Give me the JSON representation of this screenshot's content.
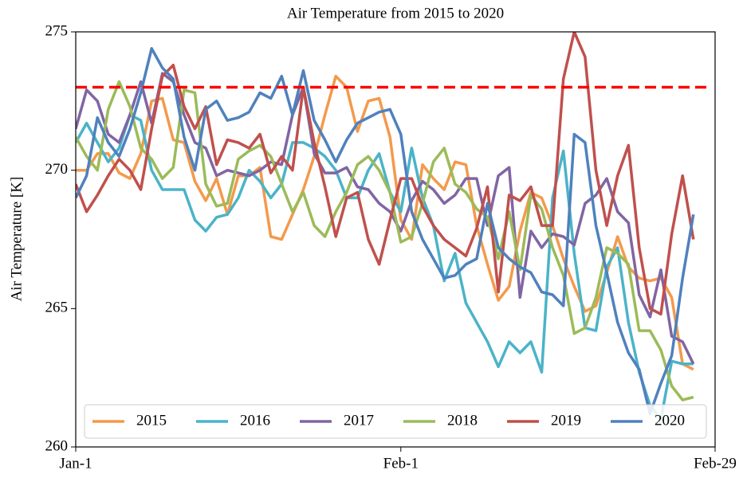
{
  "chart_data": {
    "type": "line",
    "title": "Air Temperature from 2015 to 2020",
    "ylabel": "Air Temperature [K]",
    "x": [
      0,
      1,
      2,
      3,
      4,
      5,
      6,
      7,
      8,
      9,
      10,
      11,
      12,
      13,
      14,
      15,
      16,
      17,
      18,
      19,
      20,
      21,
      22,
      23,
      24,
      25,
      26,
      27,
      28,
      29,
      30,
      31,
      32,
      33,
      34,
      35,
      36,
      37,
      38,
      39,
      40,
      41,
      42,
      43,
      44,
      45,
      46,
      47,
      48,
      49,
      50,
      51,
      52,
      53,
      54,
      55,
      56,
      57
    ],
    "xlim": [
      0,
      59
    ],
    "xticks": [
      {
        "value": 0,
        "label": "Jan-1"
      },
      {
        "value": 30,
        "label": "Feb-1"
      },
      {
        "value": 59,
        "label": "Feb-29"
      }
    ],
    "ylim": [
      260,
      275
    ],
    "yticks": [
      260,
      265,
      270,
      275
    ],
    "hline": {
      "value": 273,
      "color": "#ff0000"
    },
    "legend": "lower center",
    "series": [
      {
        "name": "2015",
        "color": "#f39a4c",
        "values": [
          270.0,
          270.0,
          270.6,
          270.6,
          269.9,
          269.7,
          270.6,
          272.5,
          272.6,
          271.1,
          271.0,
          269.6,
          268.9,
          269.7,
          268.4,
          269.8,
          269.8,
          270.1,
          267.6,
          267.5,
          268.4,
          269.3,
          270.5,
          272.0,
          273.4,
          273.0,
          271.4,
          272.5,
          272.6,
          271.2,
          268.2,
          267.5,
          270.2,
          269.7,
          269.3,
          270.3,
          270.2,
          268.0,
          266.6,
          265.3,
          265.8,
          267.8,
          269.2,
          269.0,
          268.0,
          266.8,
          265.8,
          264.9,
          265.1,
          266.3,
          267.6,
          266.5,
          266.1,
          266.0,
          266.1,
          265.4,
          263.0,
          262.8
        ]
      },
      {
        "name": "2016",
        "color": "#4bb3c8",
        "values": [
          271.0,
          271.7,
          271.0,
          270.3,
          270.8,
          272.0,
          271.8,
          270.0,
          269.3,
          269.3,
          269.3,
          268.2,
          267.8,
          268.3,
          268.4,
          269.0,
          270.0,
          269.6,
          269.0,
          269.5,
          271.0,
          271.0,
          270.8,
          270.5,
          270.0,
          269.0,
          269.0,
          270.0,
          270.6,
          269.2,
          268.5,
          270.8,
          269.0,
          268.0,
          266.0,
          267.0,
          265.2,
          264.5,
          263.8,
          262.9,
          263.8,
          263.4,
          263.8,
          262.7,
          269.0,
          270.7,
          267.0,
          264.3,
          264.2,
          266.5,
          267.2,
          264.5,
          262.7,
          261.5,
          261.0,
          263.1,
          263.0,
          263.0
        ]
      },
      {
        "name": "2017",
        "color": "#8065a3",
        "values": [
          271.5,
          272.9,
          272.5,
          271.3,
          271.0,
          272.0,
          273.2,
          271.7,
          273.5,
          273.2,
          272.0,
          271.0,
          270.8,
          269.8,
          270.0,
          269.9,
          269.8,
          270.0,
          270.3,
          270.2,
          272.0,
          273.0,
          270.6,
          269.9,
          269.9,
          270.1,
          269.4,
          269.3,
          268.8,
          268.5,
          267.8,
          268.9,
          269.6,
          269.3,
          268.8,
          269.1,
          269.7,
          269.7,
          268.0,
          269.8,
          270.1,
          265.4,
          267.8,
          267.2,
          267.7,
          267.6,
          267.3,
          268.8,
          269.1,
          269.7,
          268.5,
          268.1,
          265.5,
          264.7,
          266.4,
          264.0,
          263.8,
          263.0
        ]
      },
      {
        "name": "2018",
        "color": "#9bbb59",
        "values": [
          271.2,
          270.5,
          270.0,
          272.2,
          273.2,
          272.3,
          270.8,
          270.4,
          269.7,
          270.1,
          272.9,
          272.8,
          269.5,
          268.7,
          268.8,
          270.4,
          270.7,
          270.9,
          270.5,
          269.5,
          268.5,
          269.2,
          268.0,
          267.6,
          268.5,
          269.2,
          270.2,
          270.5,
          270.0,
          269.2,
          267.4,
          267.6,
          268.8,
          270.3,
          270.8,
          269.5,
          269.2,
          268.6,
          268.3,
          266.8,
          268.5,
          266.4,
          269.1,
          268.6,
          267.2,
          266.2,
          264.1,
          264.3,
          265.4,
          267.2,
          267.0,
          266.6,
          264.2,
          264.2,
          263.5,
          262.2,
          261.7,
          261.8
        ]
      },
      {
        "name": "2019",
        "color": "#c0504d",
        "values": [
          269.5,
          268.5,
          269.1,
          269.8,
          270.4,
          270.0,
          269.3,
          271.5,
          273.4,
          273.8,
          272.3,
          271.5,
          272.3,
          270.2,
          271.1,
          271.0,
          270.8,
          271.3,
          269.9,
          270.5,
          270.0,
          273.0,
          271.0,
          269.4,
          267.6,
          269.0,
          269.2,
          267.5,
          266.6,
          268.2,
          269.7,
          269.7,
          268.7,
          268.0,
          267.5,
          267.2,
          266.9,
          267.9,
          269.4,
          265.6,
          269.1,
          268.9,
          269.4,
          268.0,
          268.0,
          273.3,
          275.0,
          274.1,
          270.0,
          268.0,
          269.8,
          270.9,
          267.2,
          265.0,
          264.8,
          267.7,
          269.8,
          267.5
        ]
      },
      {
        "name": "2020",
        "color": "#4f81bd",
        "values": [
          269.0,
          269.8,
          271.9,
          271.0,
          270.5,
          271.5,
          272.8,
          274.4,
          273.7,
          273.3,
          271.2,
          270.0,
          272.2,
          272.5,
          271.8,
          271.9,
          272.1,
          272.8,
          272.6,
          273.4,
          272.0,
          273.6,
          271.8,
          271.1,
          270.3,
          271.1,
          271.7,
          271.9,
          272.1,
          272.2,
          271.3,
          268.5,
          267.5,
          266.8,
          266.1,
          266.2,
          266.6,
          266.8,
          268.8,
          267.2,
          266.8,
          266.5,
          266.3,
          265.6,
          265.5,
          265.1,
          271.3,
          271.0,
          268.0,
          266.3,
          264.5,
          263.4,
          262.8,
          261.2,
          262.3,
          263.3,
          266.1,
          268.4
        ]
      }
    ]
  }
}
